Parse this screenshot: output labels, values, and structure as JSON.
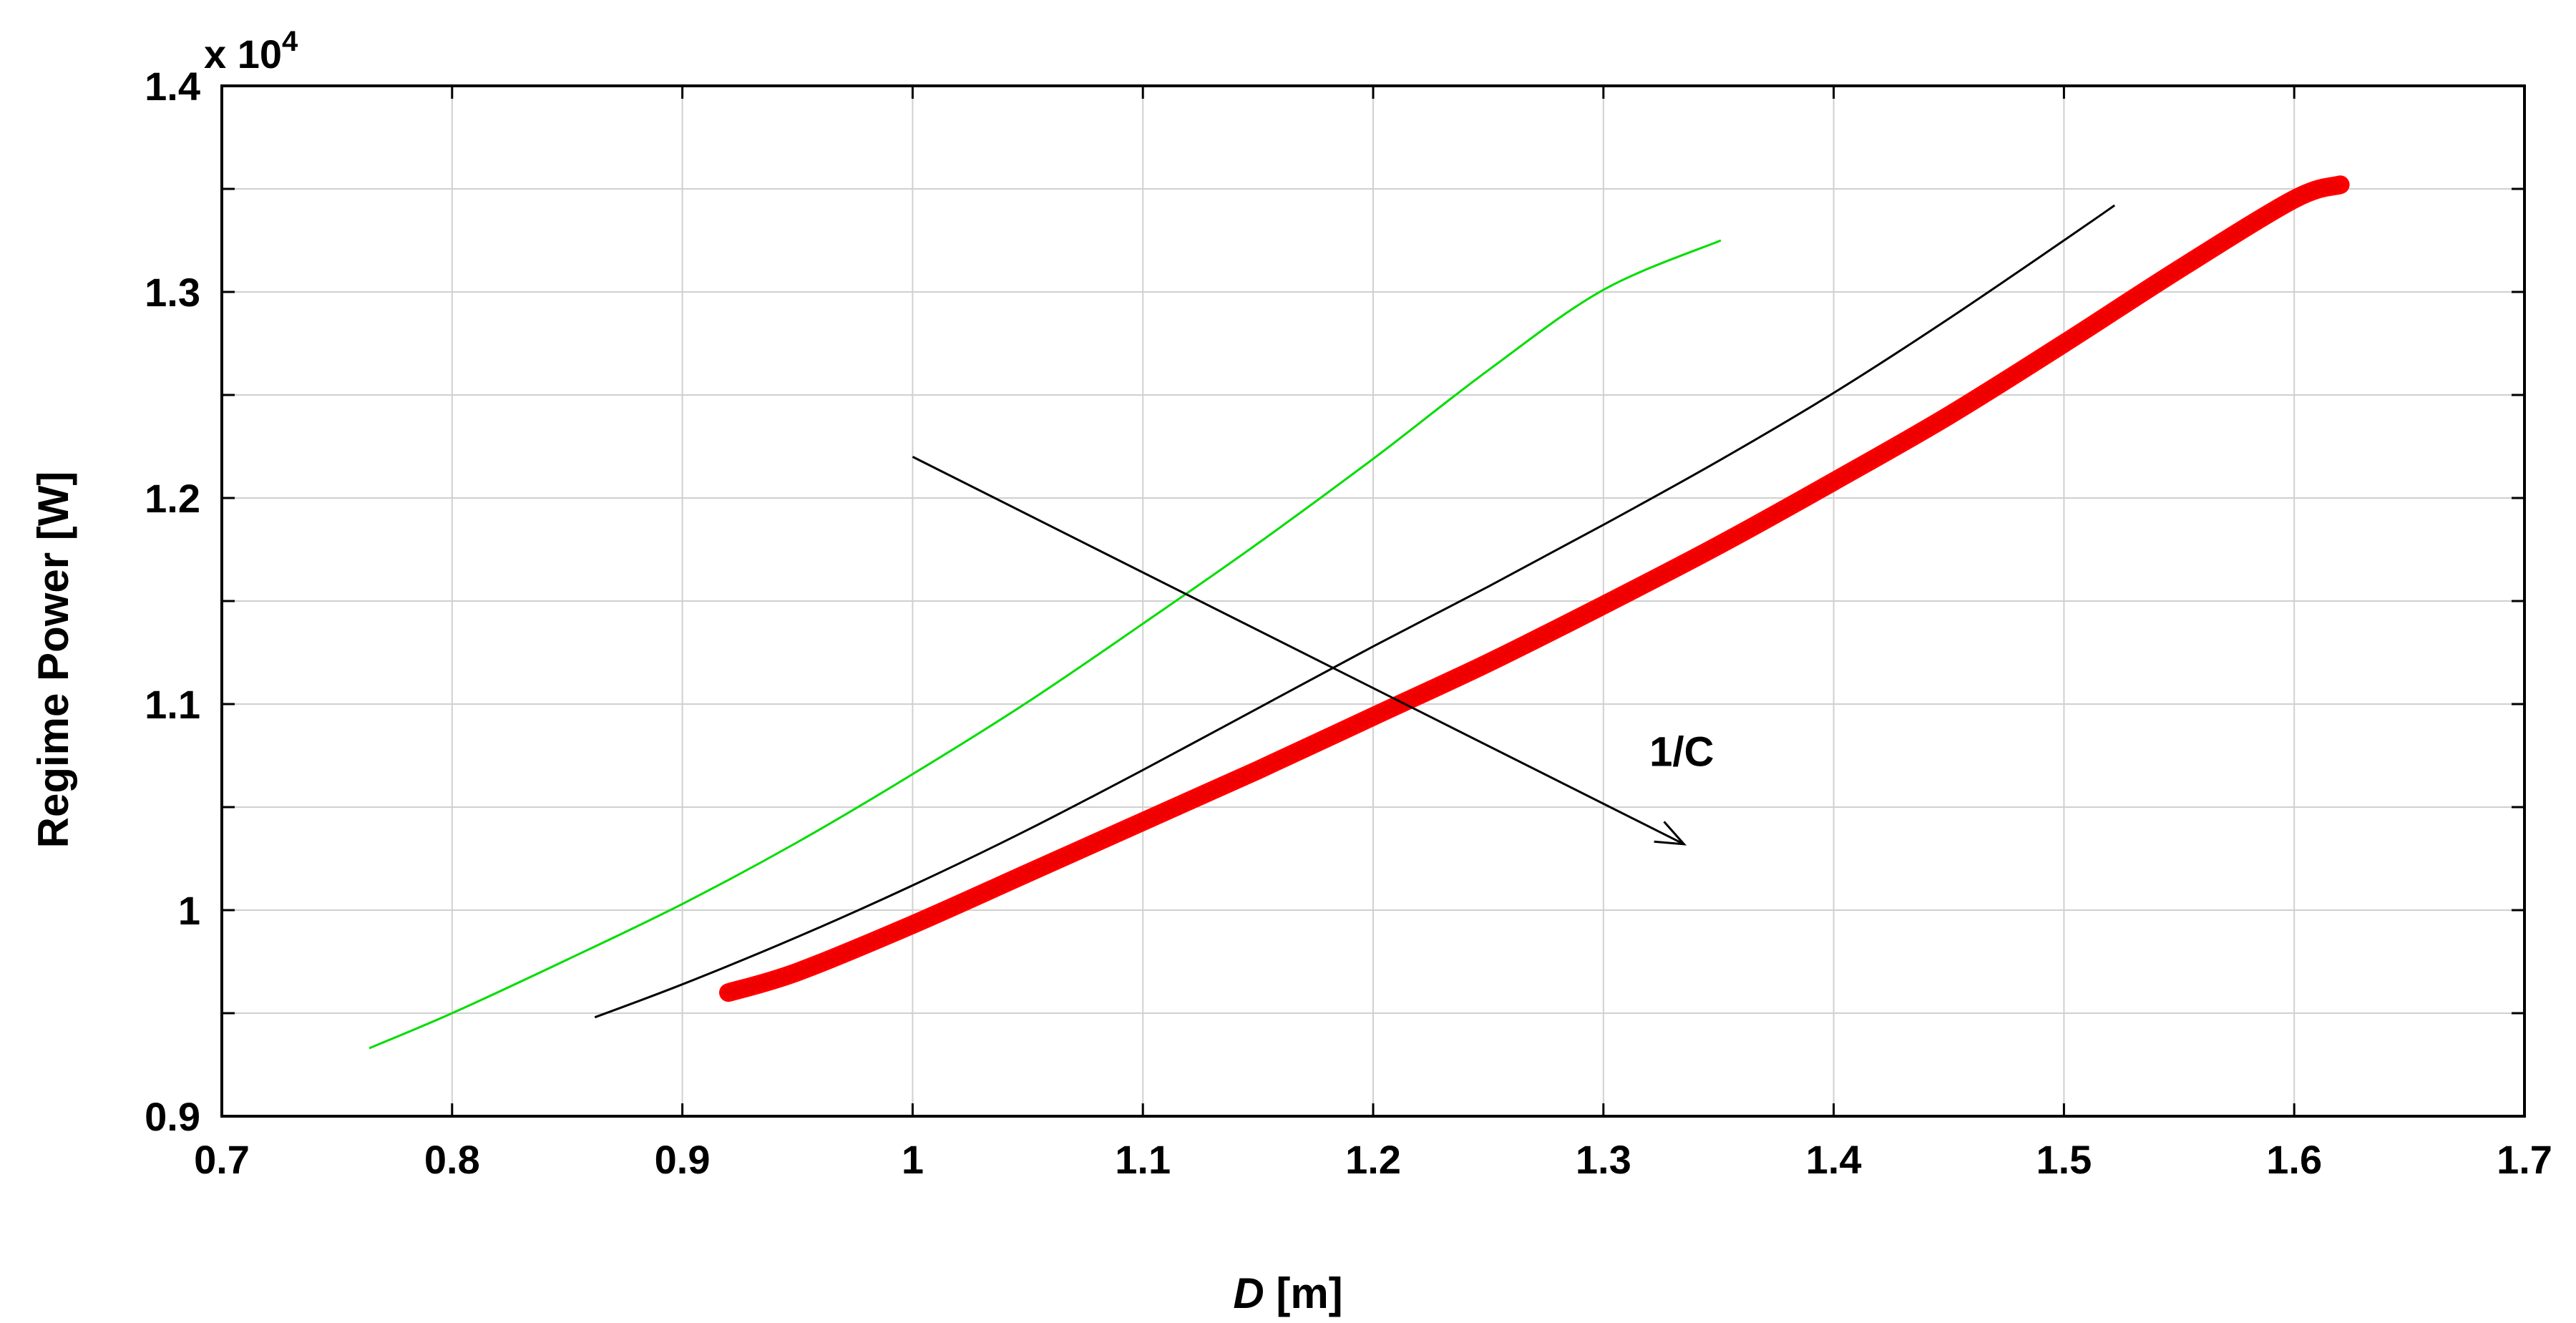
{
  "chart_data": {
    "type": "line",
    "xlabel_italic": "D",
    "xlabel_unit": " [m]",
    "ylabel": "Regime Power [W]",
    "y_multiplier_text": "x 10",
    "y_multiplier_exp": "4",
    "xlim": [
      0.7,
      1.7
    ],
    "ylim": [
      0.9,
      1.4
    ],
    "xticks": [
      0.7,
      0.8,
      0.9,
      1.0,
      1.1,
      1.2,
      1.3,
      1.4,
      1.5,
      1.6,
      1.7
    ],
    "xtick_labels": [
      "0.7",
      "0.8",
      "0.9",
      "1",
      "1.1",
      "1.2",
      "1.3",
      "1.4",
      "1.5",
      "1.6",
      "1.7"
    ],
    "yticks": [
      0.9,
      1.0,
      1.1,
      1.2,
      1.3,
      1.4
    ],
    "ytick_labels": [
      "0.9",
      "1",
      "1.1",
      "1.2",
      "1.3",
      "1.4"
    ],
    "yminor": [
      0.95,
      1.05,
      1.15,
      1.25,
      1.35
    ],
    "grid": true,
    "series": [
      {
        "color": "#00dd00",
        "marker": "none",
        "x": [
          0.764,
          0.8,
          0.85,
          0.9,
          0.95,
          1.0,
          1.05,
          1.1,
          1.15,
          1.2,
          1.25,
          1.3,
          1.351
        ],
        "y": [
          0.933,
          0.95,
          0.976,
          1.003,
          1.033,
          1.066,
          1.101,
          1.139,
          1.178,
          1.219,
          1.262,
          1.301,
          1.325
        ]
      },
      {
        "color": "#000000",
        "marker": "none",
        "x": [
          0.862,
          0.9,
          0.95,
          1.0,
          1.05,
          1.1,
          1.15,
          1.2,
          1.25,
          1.3,
          1.35,
          1.4,
          1.45,
          1.5,
          1.522
        ],
        "y": [
          0.948,
          0.964,
          0.987,
          1.012,
          1.039,
          1.068,
          1.098,
          1.128,
          1.157,
          1.187,
          1.218,
          1.251,
          1.287,
          1.325,
          1.342
        ]
      },
      {
        "color": "#ff0000",
        "marker": "star",
        "x": [
          0.92,
          0.95,
          1.0,
          1.05,
          1.1,
          1.15,
          1.2,
          1.25,
          1.3,
          1.35,
          1.4,
          1.45,
          1.5,
          1.55,
          1.6,
          1.62
        ],
        "y": [
          0.96,
          0.97,
          0.993,
          1.018,
          1.043,
          1.068,
          1.094,
          1.12,
          1.148,
          1.177,
          1.208,
          1.24,
          1.275,
          1.311,
          1.345,
          1.352
        ]
      }
    ],
    "annotation": {
      "text": "1/C",
      "text_x": 1.32,
      "text_y": 1.07,
      "arrow_from": [
        1.0,
        1.22
      ],
      "arrow_to": [
        1.335,
        1.032
      ]
    }
  }
}
